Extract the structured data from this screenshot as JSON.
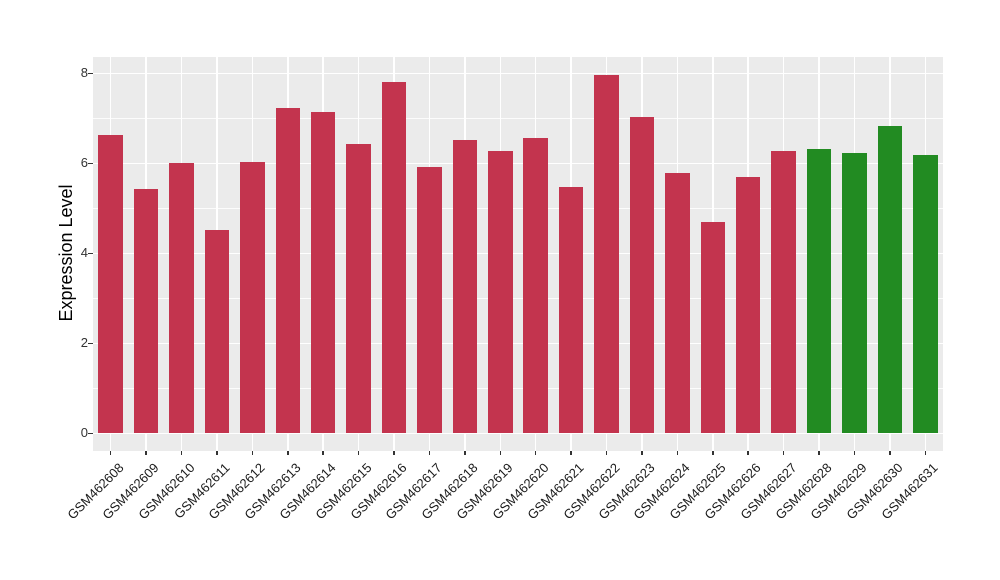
{
  "chart_data": {
    "type": "bar",
    "title": "",
    "xlabel": "",
    "ylabel": "Expression Level",
    "categories": [
      "GSM462608",
      "GSM462609",
      "GSM462610",
      "GSM462611",
      "GSM462612",
      "GSM462613",
      "GSM462614",
      "GSM462615",
      "GSM462616",
      "GSM462617",
      "GSM462618",
      "GSM462619",
      "GSM462620",
      "GSM462621",
      "GSM462622",
      "GSM462623",
      "GSM462624",
      "GSM462625",
      "GSM462626",
      "GSM462627",
      "GSM462628",
      "GSM462629",
      "GSM462630",
      "GSM462631"
    ],
    "values": [
      6.64,
      5.42,
      6.01,
      4.52,
      6.04,
      7.23,
      7.14,
      6.43,
      7.8,
      5.91,
      6.52,
      6.28,
      6.56,
      5.47,
      7.97,
      7.02,
      5.78,
      4.69,
      5.7,
      6.28,
      6.31,
      6.22,
      6.84,
      6.18
    ],
    "bar_color_keys": [
      "red",
      "red",
      "red",
      "red",
      "red",
      "red",
      "red",
      "red",
      "red",
      "red",
      "red",
      "red",
      "red",
      "red",
      "red",
      "red",
      "red",
      "red",
      "red",
      "red",
      "green",
      "green",
      "green",
      "green"
    ],
    "palette": {
      "red": "#C3344E",
      "green": "#228B22"
    },
    "y_axis": {
      "ticks": [
        0,
        2,
        4,
        6,
        8
      ],
      "minor_ticks": [
        1,
        3,
        5,
        7
      ],
      "shown_range": [
        -0.39,
        8.37
      ]
    },
    "x_axis": {
      "tick_rotation_deg": 45
    },
    "panel_background": "#EBEBEB",
    "gridline_color": "#FFFFFF",
    "axis_text_color": "#333333",
    "grid": true,
    "legend": "none"
  }
}
